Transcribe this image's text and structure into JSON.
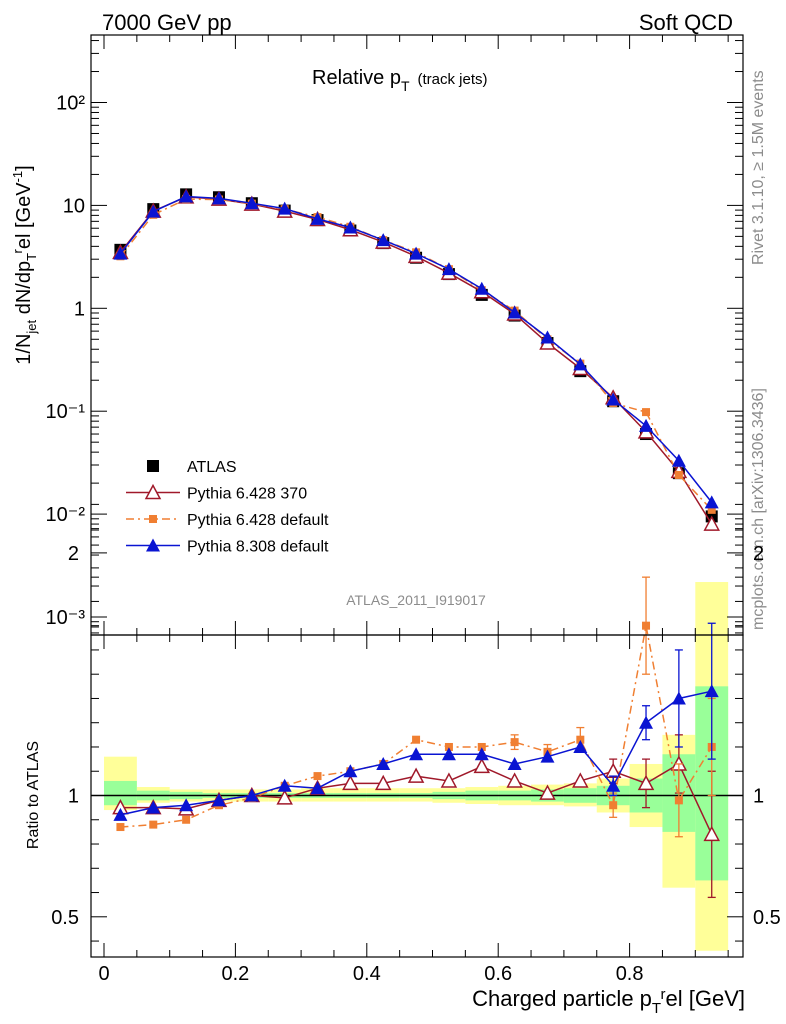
{
  "header": {
    "left": "7000 GeV pp",
    "right": "Soft QCD",
    "plot_title": "Relative p",
    "plot_title_sub": "T",
    "plot_title_extra": "(track jets)",
    "analysis_id": "ATLAS_2011_I919017",
    "side_rivet": "Rivet 3.1.10, ≥ 1.5M events",
    "side_mcplots": "mcplots.cern.ch [arXiv:1306.3436]"
  },
  "chart_data": [
    {
      "type": "line",
      "panel": "main",
      "yscale": "log",
      "ylim": [
        0.0007,
        500
      ],
      "xlim": [
        -0.02,
        0.97
      ],
      "ylabel": "1/N_jet dN/dp_T^rel [GeV^-1]",
      "yticks": [
        "10⁻³",
        "10⁻²",
        "10⁻¹",
        "1",
        "10",
        "10²"
      ],
      "legend_position": "lower-left",
      "x": [
        0.025,
        0.075,
        0.125,
        0.175,
        0.225,
        0.275,
        0.325,
        0.375,
        0.425,
        0.475,
        0.525,
        0.575,
        0.625,
        0.675,
        0.725,
        0.775,
        0.825,
        0.875,
        0.925
      ],
      "series": [
        {
          "name": "ATLAS",
          "color": "#000000",
          "style": "markers",
          "values": [
            3.7,
            9.2,
            12.8,
            12.0,
            10.5,
            8.9,
            7.2,
            5.7,
            4.3,
            3.1,
            2.15,
            1.35,
            0.85,
            0.46,
            0.245,
            0.125,
            0.06,
            0.025,
            0.0095
          ]
        },
        {
          "name": "Pythia 6.428 370",
          "color": "#a0192a",
          "style": "line-open-triangle",
          "values": [
            3.5,
            8.8,
            12.1,
            11.5,
            10.3,
            8.8,
            7.3,
            5.8,
            4.4,
            3.2,
            2.2,
            1.45,
            0.88,
            0.46,
            0.26,
            0.135,
            0.063,
            0.026,
            0.008
          ]
        },
        {
          "name": "Pythia 6.428 default",
          "color": "#f07f32",
          "style": "dashdot-square",
          "values": [
            3.2,
            8.1,
            11.5,
            11.4,
            10.4,
            9.2,
            7.7,
            6.2,
            4.6,
            3.5,
            2.4,
            1.5,
            0.95,
            0.5,
            0.29,
            0.12,
            0.098,
            0.024,
            0.011
          ]
        },
        {
          "name": "Pythia 8.308 default",
          "color": "#0a14d2",
          "style": "line-filled-triangle",
          "values": [
            3.4,
            8.7,
            12.2,
            11.7,
            10.5,
            9.3,
            7.4,
            6.1,
            4.6,
            3.4,
            2.4,
            1.55,
            0.91,
            0.52,
            0.285,
            0.13,
            0.072,
            0.033,
            0.013
          ]
        }
      ]
    },
    {
      "type": "line",
      "panel": "ratio",
      "ylim": [
        0.35,
        2.3
      ],
      "xlim": [
        -0.02,
        0.97
      ],
      "xlabel": "Charged particle p_T^rel [GeV]",
      "ylabel": "Ratio to ATLAS",
      "xticks": [
        "0",
        "0.2",
        "0.4",
        "0.6",
        "0.8"
      ],
      "yticks": [
        "0.5",
        "1",
        "2"
      ],
      "x": [
        0.025,
        0.075,
        0.125,
        0.175,
        0.225,
        0.275,
        0.325,
        0.375,
        0.425,
        0.475,
        0.525,
        0.575,
        0.625,
        0.675,
        0.725,
        0.775,
        0.825,
        0.875,
        0.925
      ],
      "band_edges": [
        0.0,
        0.05,
        0.1,
        0.15,
        0.2,
        0.25,
        0.3,
        0.35,
        0.4,
        0.45,
        0.5,
        0.55,
        0.6,
        0.65,
        0.7,
        0.75,
        0.8,
        0.85,
        0.9,
        0.95
      ],
      "stat_band": [
        [
          0.96,
          1.06
        ],
        [
          0.98,
          1.02
        ],
        [
          0.985,
          1.015
        ],
        [
          0.99,
          1.01
        ],
        [
          0.99,
          1.01
        ],
        [
          0.99,
          1.01
        ],
        [
          0.99,
          1.01
        ],
        [
          0.99,
          1.01
        ],
        [
          0.99,
          1.01
        ],
        [
          0.99,
          1.01
        ],
        [
          0.985,
          1.015
        ],
        [
          0.98,
          1.02
        ],
        [
          0.98,
          1.02
        ],
        [
          0.975,
          1.025
        ],
        [
          0.97,
          1.03
        ],
        [
          0.96,
          1.04
        ],
        [
          0.93,
          1.07
        ],
        [
          0.85,
          1.17
        ],
        [
          0.65,
          1.45
        ]
      ],
      "total_band": [
        [
          0.94,
          1.16
        ],
        [
          0.97,
          1.035
        ],
        [
          0.975,
          1.025
        ],
        [
          0.975,
          1.025
        ],
        [
          0.975,
          1.025
        ],
        [
          0.975,
          1.025
        ],
        [
          0.975,
          1.03
        ],
        [
          0.975,
          1.03
        ],
        [
          0.975,
          1.03
        ],
        [
          0.975,
          1.03
        ],
        [
          0.97,
          1.03
        ],
        [
          0.965,
          1.035
        ],
        [
          0.96,
          1.04
        ],
        [
          0.96,
          1.045
        ],
        [
          0.955,
          1.05
        ],
        [
          0.93,
          1.07
        ],
        [
          0.87,
          1.13
        ],
        [
          0.62,
          1.25
        ],
        [
          0.36,
          1.88
        ]
      ],
      "series": [
        {
          "name": "Pythia 6.428 370",
          "color": "#a0192a",
          "style": "line-open-triangle",
          "values": [
            0.95,
            0.95,
            0.945,
            0.98,
            1.0,
            0.99,
            1.03,
            1.05,
            1.05,
            1.08,
            1.06,
            1.12,
            1.06,
            1.01,
            1.06,
            1.1,
            1.05,
            1.13,
            0.84
          ],
          "errors": [
            0,
            0,
            0,
            0,
            0,
            0,
            0,
            0,
            0,
            0,
            0,
            0,
            0,
            0,
            0,
            0.05,
            0.1,
            0.12,
            0.26
          ]
        },
        {
          "name": "Pythia 6.428 default",
          "color": "#f07f32",
          "style": "dashdot-square",
          "values": [
            0.87,
            0.88,
            0.9,
            0.96,
            0.99,
            1.04,
            1.08,
            1.1,
            1.13,
            1.23,
            1.2,
            1.2,
            1.22,
            1.18,
            1.23,
            0.96,
            1.7,
            0.98,
            1.2
          ],
          "errors": [
            0,
            0,
            0,
            0,
            0,
            0,
            0,
            0,
            0,
            0,
            0,
            0,
            0.03,
            0.03,
            0.05,
            0.05,
            0.2,
            0.15,
            0.2
          ]
        },
        {
          "name": "Pythia 8.308 default",
          "color": "#0a14d2",
          "style": "line-filled-triangle",
          "values": [
            0.92,
            0.95,
            0.96,
            0.98,
            1.0,
            1.04,
            1.03,
            1.1,
            1.13,
            1.17,
            1.17,
            1.17,
            1.13,
            1.16,
            1.2,
            1.04,
            1.3,
            1.4,
            1.43
          ],
          "errors": [
            0,
            0,
            0,
            0,
            0,
            0,
            0,
            0,
            0,
            0,
            0,
            0,
            0,
            0,
            0,
            0.04,
            0.07,
            0.2,
            0.28
          ]
        }
      ]
    }
  ]
}
